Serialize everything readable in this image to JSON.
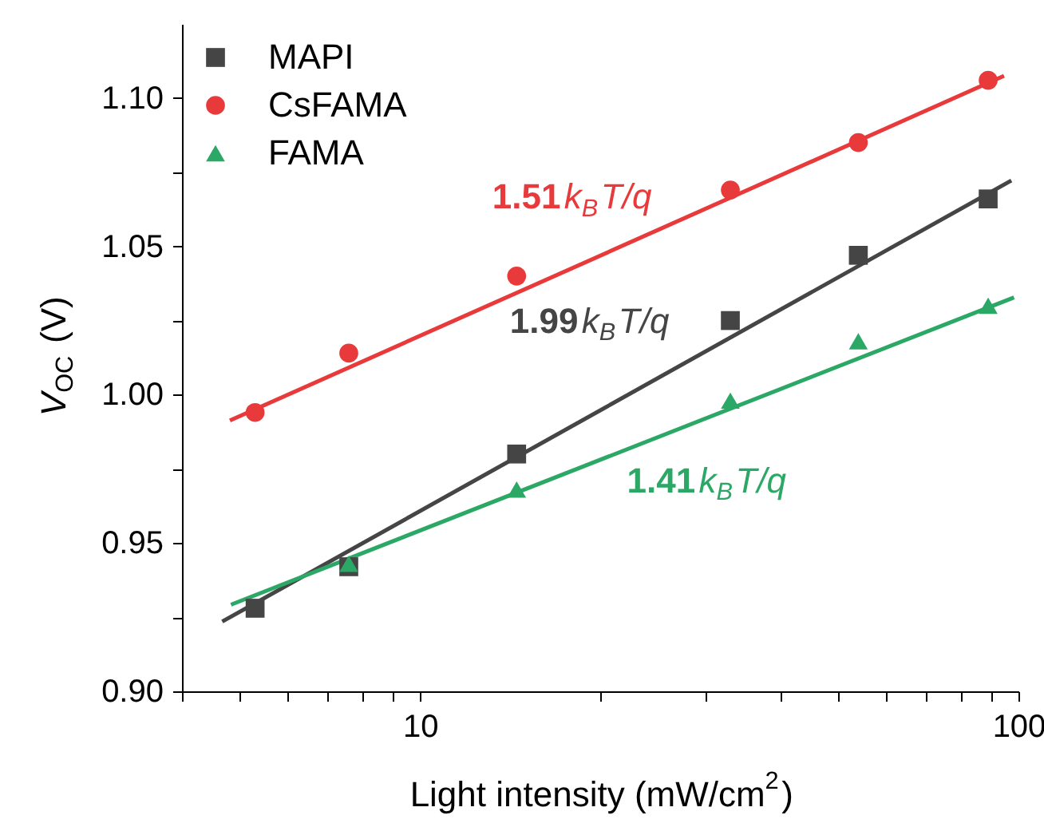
{
  "chart_data": {
    "type": "scatter",
    "xlabel": "Light intensity (mW/cm$^{2}$)",
    "ylabel": "V$_{OC}$ (V)",
    "log": "x",
    "xlim": [
      4,
      100
    ],
    "ylim": [
      0.9,
      1.125
    ],
    "xticks": [
      {
        "value": 4,
        "label": null
      },
      {
        "value": 5,
        "label": null
      },
      {
        "value": 6,
        "label": null
      },
      {
        "value": 7,
        "label": null
      },
      {
        "value": 8,
        "label": null
      },
      {
        "value": 9,
        "label": null
      },
      10,
      {
        "value": 20,
        "label": null
      },
      {
        "value": 30,
        "label": null
      },
      {
        "value": 40,
        "label": null
      },
      {
        "value": 50,
        "label": null
      },
      {
        "value": 60,
        "label": null
      },
      {
        "value": 70,
        "label": null
      },
      {
        "value": 80,
        "label": null
      },
      {
        "value": 90,
        "label": null
      },
      100
    ],
    "yticks": [
      {
        "value": 0.9,
        "label": "0.90"
      },
      {
        "value": 0.925,
        "label": null
      },
      0.95,
      {
        "value": 0.975,
        "label": null
      },
      {
        "value": 1.0,
        "label": "1.00"
      },
      {
        "value": 1.025,
        "label": null
      },
      1.05,
      {
        "value": 1.075,
        "label": null
      },
      {
        "value": 1.1,
        "label": "1.10"
      }
    ],
    "grid": false,
    "legend": "top left",
    "x": [
      5.3,
      7.6,
      14.5,
      33,
      54,
      89
    ],
    "series": [
      {
        "name": "MAPI",
        "color": "#454545",
        "marker": "square",
        "values": [
          0.928,
          0.942,
          0.98,
          1.025,
          1.047,
          1.066
        ]
      },
      {
        "name": "CsFAMA",
        "color": "#e8393b",
        "marker": "circle",
        "values": [
          0.994,
          1.014,
          1.04,
          1.069,
          1.085,
          1.106
        ]
      },
      {
        "name": "FAMA",
        "color": "#2ba866",
        "marker": "triangle",
        "x": [
          7.6,
          14.5,
          33,
          54,
          89
        ],
        "values": [
          0.943,
          0.968,
          0.998,
          1.018,
          1.03
        ]
      },
      {
        "type": "line",
        "color": "#454545",
        "marker": "none",
        "x": [
          4.67,
          97.3
        ],
        "values": [
          0.9235,
          1.0722
        ]
      },
      {
        "type": "line",
        "color": "#e8393b",
        "marker": "none",
        "x": [
          4.81,
          94.6
        ],
        "values": [
          0.9913,
          1.1075
        ]
      },
      {
        "type": "line",
        "color": "#2ba866",
        "marker": "none",
        "x": [
          4.83,
          98.3
        ],
        "values": [
          0.9292,
          1.0328
        ]
      }
    ],
    "annotations": [
      "1.99k$_{B}$T/q",
      "1.51k$_{B}$T/q",
      "1.41k$_{B}$T/q"
    ]
  }
}
